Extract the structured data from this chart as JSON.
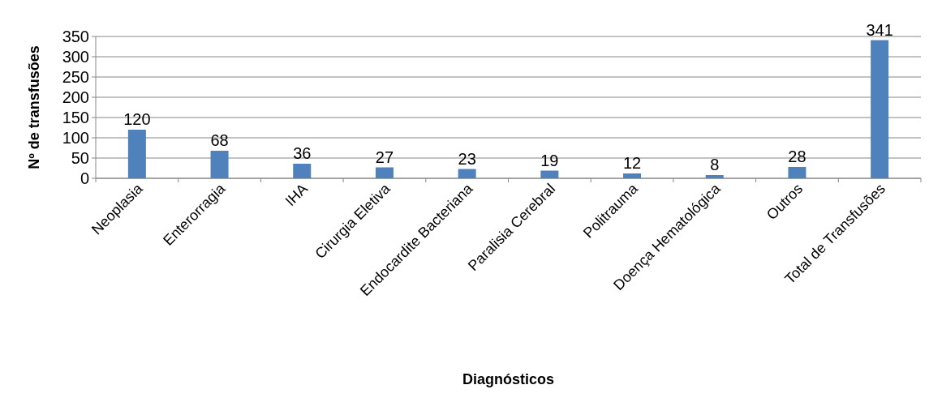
{
  "chart_data": {
    "type": "bar",
    "xlabel": "Diagnósticos",
    "ylabel": "Nº de transfusões",
    "categories": [
      "Neoplasia",
      "Enterorragia",
      "IHA",
      "Cirurgia Eletiva",
      "Endocardite Bacteriana",
      "Paralisia Cerebral",
      "Politrauma",
      "Doença Hematológica",
      "Outros",
      "Total de Transfusões"
    ],
    "values": [
      120,
      68,
      36,
      27,
      23,
      19,
      12,
      8,
      28,
      341
    ],
    "color": "#4f81bd",
    "ylim": [
      0,
      350
    ],
    "yticks": [
      0,
      50,
      100,
      150,
      200,
      250,
      300,
      350
    ],
    "grid": "y",
    "data_labels": true
  }
}
